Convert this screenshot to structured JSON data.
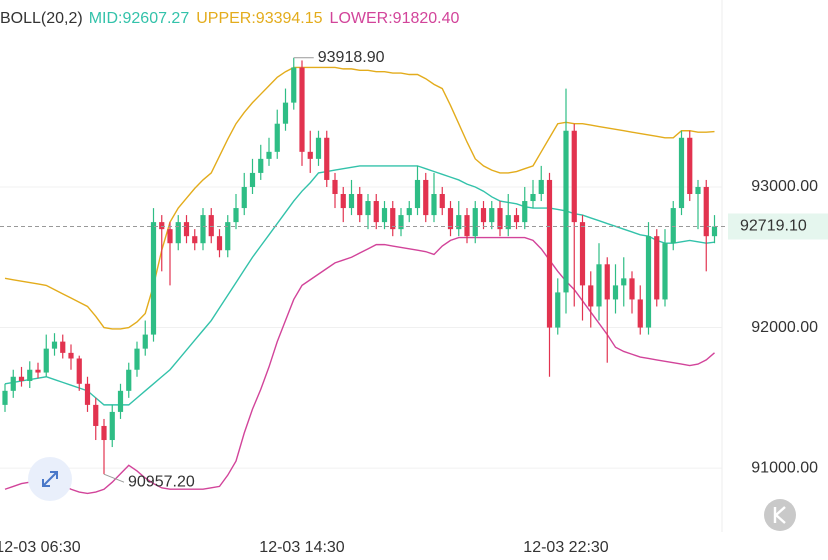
{
  "chart_data": {
    "type": "candlestick",
    "indicator": "BOLL(20,2)",
    "categories": [
      null,
      null,
      null,
      null,
      "12-03 06:30",
      null,
      null,
      null,
      null,
      null,
      null,
      null,
      null,
      null,
      null,
      null,
      null,
      null,
      null,
      null,
      null,
      null,
      null,
      null,
      null,
      null,
      null,
      null,
      null,
      null,
      null,
      null,
      null,
      null,
      null,
      null,
      "12-03 14:30",
      null,
      null,
      null,
      null,
      null,
      null,
      null,
      null,
      null,
      null,
      null,
      null,
      null,
      null,
      null,
      null,
      null,
      null,
      null,
      null,
      null,
      null,
      null,
      null,
      null,
      null,
      null,
      null,
      null,
      null,
      null,
      "12-03 22:30",
      null,
      null,
      null,
      null,
      null,
      null,
      null,
      null,
      null,
      null,
      null,
      null,
      null,
      null,
      null,
      null,
      null,
      null
    ],
    "open": [
      91450,
      91550,
      91650,
      91620,
      91700,
      91680,
      91850,
      91900,
      91820,
      91780,
      91600,
      91450,
      91300,
      91200,
      91400,
      91550,
      91700,
      91850,
      91950,
      92750,
      92700,
      92600,
      92750,
      92650,
      92600,
      92800,
      92650,
      92550,
      92750,
      92850,
      93000,
      93100,
      93200,
      93250,
      93450,
      93600,
      93850,
      93250,
      93200,
      93350,
      93050,
      92950,
      92850,
      92950,
      92800,
      92900,
      92750,
      92850,
      92700,
      92800,
      92850,
      93050,
      92800,
      92950,
      92850,
      92700,
      92800,
      92650,
      92850,
      92750,
      92850,
      92700,
      92800,
      92750,
      92900,
      92950,
      93050,
      92000,
      92250,
      93400,
      92750,
      92300,
      92150,
      92450,
      92200,
      92300,
      92350,
      92200,
      92000,
      92650,
      92200,
      92600,
      92850,
      93350,
      92950,
      93000,
      92650
    ],
    "high": [
      91600,
      91700,
      91720,
      91760,
      91750,
      91950,
      91960,
      91950,
      91880,
      91800,
      91650,
      91500,
      91350,
      91450,
      91600,
      91750,
      91900,
      92050,
      92850,
      92800,
      92750,
      92800,
      92800,
      92700,
      92850,
      92850,
      92700,
      92800,
      92950,
      93100,
      93200,
      93300,
      93350,
      93550,
      93700,
      93918.9,
      93900,
      93400,
      93400,
      93400,
      93100,
      93000,
      93050,
      93000,
      92950,
      92950,
      92900,
      92900,
      92850,
      92900,
      93150,
      93100,
      93100,
      93000,
      92900,
      92900,
      92850,
      92900,
      92900,
      92900,
      92900,
      92950,
      92850,
      93000,
      93050,
      93150,
      93100,
      92350,
      93700,
      93450,
      92800,
      92400,
      92600,
      92500,
      92450,
      92500,
      92400,
      92300,
      92750,
      92700,
      92700,
      92900,
      93400,
      93400,
      93050,
      93050,
      92800
    ],
    "low": [
      91400,
      91500,
      91580,
      91570,
      91640,
      91650,
      91800,
      91780,
      91700,
      91550,
      91400,
      91200,
      90957.2,
      91150,
      91350,
      91500,
      91650,
      91800,
      91900,
      92400,
      92300,
      92550,
      92600,
      92550,
      92550,
      92600,
      92500,
      92500,
      92700,
      92800,
      92950,
      93050,
      93150,
      93200,
      93400,
      93550,
      93150,
      93100,
      93150,
      93000,
      92850,
      92750,
      92800,
      92750,
      92700,
      92700,
      92700,
      92650,
      92650,
      92750,
      92800,
      92750,
      92750,
      92800,
      92650,
      92650,
      92600,
      92600,
      92700,
      92700,
      92650,
      92650,
      92700,
      92700,
      92850,
      92900,
      91650,
      91950,
      92100,
      92150,
      92050,
      92000,
      92050,
      91750,
      92100,
      92150,
      92100,
      91950,
      91950,
      92150,
      92150,
      92550,
      92800,
      92900,
      92700,
      92400,
      92600
    ],
    "close": [
      91550,
      91650,
      91620,
      91700,
      91680,
      91850,
      91900,
      91820,
      91780,
      91600,
      91450,
      91300,
      91200,
      91400,
      91550,
      91700,
      91850,
      91950,
      92750,
      92700,
      92600,
      92750,
      92650,
      92600,
      92800,
      92650,
      92550,
      92750,
      92850,
      93000,
      93100,
      93200,
      93250,
      93450,
      93600,
      93850,
      93250,
      93200,
      93350,
      93050,
      92950,
      92850,
      92950,
      92800,
      92900,
      92750,
      92850,
      92700,
      92800,
      92850,
      93050,
      92800,
      92950,
      92850,
      92700,
      92800,
      92650,
      92850,
      92750,
      92850,
      92700,
      92800,
      92750,
      92900,
      92950,
      93050,
      92000,
      92250,
      93400,
      92750,
      92300,
      92150,
      92450,
      92200,
      92300,
      92350,
      92200,
      92000,
      92650,
      92200,
      92600,
      92850,
      93350,
      92950,
      93000,
      92650,
      92719.1
    ],
    "up_color": "#2ebd85",
    "down_color": "#e2334f",
    "series": [
      {
        "name": "MID:92607.27",
        "color": "#33c2aa",
        "values": [
          91600,
          91610,
          91620,
          91630,
          91640,
          91650,
          91630,
          91610,
          91590,
          91570,
          91550,
          91500,
          91450,
          91450,
          91450,
          91450,
          91500,
          91550,
          91600,
          91650,
          91700,
          91770,
          91840,
          91910,
          91980,
          92050,
          92140,
          92230,
          92320,
          92410,
          92500,
          92580,
          92660,
          92740,
          92820,
          92900,
          92970,
          93030,
          93100,
          93110,
          93120,
          93130,
          93140,
          93150,
          93150,
          93150,
          93150,
          93150,
          93150,
          93150,
          93150,
          93130,
          93110,
          93090,
          93070,
          93050,
          93020,
          93000,
          92970,
          92930,
          92900,
          92890,
          92880,
          92860,
          92850,
          92850,
          92850,
          92840,
          92830,
          92810,
          92800,
          92780,
          92760,
          92740,
          92720,
          92700,
          92680,
          92660,
          92650,
          92620,
          92600,
          92600,
          92610,
          92620,
          92610,
          92600,
          92607.27
        ]
      },
      {
        "name": "UPPER:93394.15",
        "color": "#e3ac1c",
        "values": [
          92350,
          92340,
          92330,
          92320,
          92310,
          92300,
          92270,
          92240,
          92210,
          92180,
          92150,
          92080,
          92000,
          91990,
          91990,
          92000,
          92040,
          92100,
          92300,
          92550,
          92750,
          92850,
          92920,
          92990,
          93050,
          93100,
          93220,
          93340,
          93450,
          93530,
          93600,
          93660,
          93720,
          93780,
          93820,
          93850,
          93850,
          93850,
          93850,
          93850,
          93850,
          93840,
          93840,
          93830,
          93830,
          93820,
          93820,
          93810,
          93810,
          93800,
          93800,
          93770,
          93730,
          93700,
          93580,
          93450,
          93320,
          93200,
          93150,
          93120,
          93100,
          93100,
          93110,
          93130,
          93150,
          93250,
          93350,
          93450,
          93460,
          93450,
          93450,
          93440,
          93430,
          93420,
          93410,
          93400,
          93390,
          93380,
          93370,
          93360,
          93350,
          93350,
          93400,
          93400,
          93390,
          93390,
          93394.15
        ]
      },
      {
        "name": "LOWER:91820.40",
        "color": "#d2449a",
        "values": [
          90850,
          90870,
          90890,
          90900,
          90900,
          90900,
          90900,
          90880,
          90850,
          90830,
          90820,
          90830,
          90850,
          90900,
          90960,
          91020,
          90980,
          90930,
          90890,
          90860,
          90850,
          90850,
          90850,
          90850,
          90850,
          90860,
          90870,
          90950,
          91050,
          91250,
          91420,
          91560,
          91720,
          91900,
          92050,
          92200,
          92300,
          92340,
          92380,
          92420,
          92460,
          92480,
          92500,
          92530,
          92560,
          92590,
          92590,
          92580,
          92570,
          92560,
          92550,
          92540,
          92520,
          92580,
          92620,
          92640,
          92640,
          92640,
          92640,
          92640,
          92640,
          92640,
          92640,
          92640,
          92620,
          92560,
          92480,
          92400,
          92330,
          92270,
          92190,
          92110,
          92030,
          91950,
          91860,
          91830,
          91810,
          91790,
          91780,
          91770,
          91760,
          91750,
          91740,
          91730,
          91740,
          91770,
          91820.4
        ]
      }
    ],
    "ylim": [
      90560,
      94330
    ],
    "yticks": [
      {
        "value": 93000,
        "label": "93000.00"
      },
      {
        "value": 92000,
        "label": "92000.00"
      },
      {
        "value": 91000,
        "label": "91000.00"
      }
    ],
    "grid": true,
    "annotations": [
      {
        "value": 93918.9,
        "label": "93918.90"
      },
      {
        "value": 90957.2,
        "label": "90957.20"
      }
    ],
    "last_price": {
      "value": 92719.1,
      "label": "92719.10"
    }
  }
}
